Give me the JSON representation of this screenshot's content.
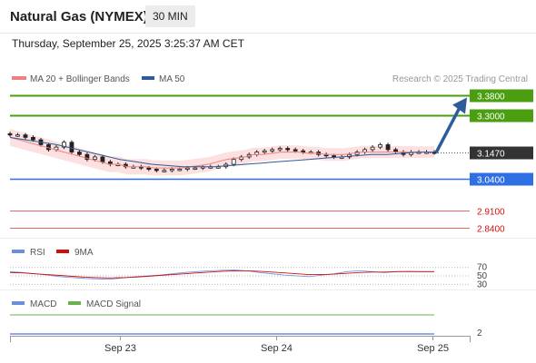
{
  "header": {
    "title": "Natural Gas (NYMEX)",
    "timeframe": "30 MIN",
    "timestamp": "Thursday, September 25, 2025 3:25:37 AM CET"
  },
  "legend": {
    "ma20_bb": "MA 20 + Bollinger Bands",
    "ma50": "MA 50",
    "copyright": "Research © 2025 Trading Central",
    "rsi": "RSI",
    "rsi_ma": "9MA",
    "macd": "MACD",
    "macd_signal": "MACD Signal"
  },
  "colors": {
    "ma20": "#f08080",
    "ma50": "#2c5d9a",
    "bands": "#fde0e0",
    "resistance": "#4a9e0f",
    "support": "#2f6fe4",
    "target_red": "#d01010",
    "current": "#333333",
    "arrow": "#2c5d9a",
    "rsi": "#6a8fe0",
    "rsi_ma": "#d01010",
    "macd": "#6a8fe0",
    "macd_signal": "#6ab04c"
  },
  "chart_data": {
    "type": "line",
    "price_levels": [
      {
        "label": "3.3800",
        "value": 3.38,
        "kind": "resistance"
      },
      {
        "label": "3.3000",
        "value": 3.3,
        "kind": "resistance"
      },
      {
        "label": "3.1470",
        "value": 3.147,
        "kind": "current"
      },
      {
        "label": "3.0400",
        "value": 3.04,
        "kind": "support"
      },
      {
        "label": "2.9100",
        "value": 2.91,
        "kind": "target"
      },
      {
        "label": "2.8400",
        "value": 2.84,
        "kind": "target"
      }
    ],
    "price_axis": {
      "min": 2.8,
      "max": 3.43
    },
    "x_ticks": [
      {
        "label": "Sep 23",
        "t": 0.24
      },
      {
        "label": "Sep 24",
        "t": 0.58
      },
      {
        "label": "Sep 25",
        "t": 0.92
      }
    ],
    "close": [
      3.22,
      3.22,
      3.21,
      3.2,
      3.18,
      3.16,
      3.17,
      3.19,
      3.15,
      3.14,
      3.12,
      3.13,
      3.11,
      3.1,
      3.1,
      3.09,
      3.09,
      3.085,
      3.08,
      3.075,
      3.075,
      3.08,
      3.08,
      3.085,
      3.085,
      3.09,
      3.09,
      3.09,
      3.1,
      3.12,
      3.13,
      3.14,
      3.15,
      3.155,
      3.16,
      3.165,
      3.16,
      3.155,
      3.15,
      3.15,
      3.14,
      3.135,
      3.13,
      3.13,
      3.14,
      3.15,
      3.16,
      3.17,
      3.18,
      3.16,
      3.15,
      3.14,
      3.15,
      3.15,
      3.15,
      3.147
    ],
    "ma20": [
      3.21,
      3.2,
      3.19,
      3.18,
      3.17,
      3.16,
      3.15,
      3.14,
      3.13,
      3.12,
      3.11,
      3.1,
      3.1,
      3.09,
      3.09,
      3.09,
      3.085,
      3.085,
      3.085,
      3.085,
      3.09,
      3.095,
      3.1,
      3.11,
      3.12,
      3.125,
      3.13,
      3.14,
      3.14,
      3.145,
      3.15,
      3.15,
      3.15,
      3.145,
      3.145,
      3.14,
      3.14,
      3.14,
      3.145,
      3.15,
      3.15,
      3.15,
      3.15,
      3.15,
      3.15,
      3.15,
      3.15,
      3.15
    ],
    "ma50": [
      3.21,
      3.2,
      3.19,
      3.18,
      3.165,
      3.15,
      3.135,
      3.12,
      3.11,
      3.1,
      3.095,
      3.09,
      3.09,
      3.09,
      3.095,
      3.1,
      3.105,
      3.11,
      3.115,
      3.12,
      3.125,
      3.13,
      3.135,
      3.14,
      3.14,
      3.145,
      3.15,
      3.15
    ],
    "rsi": [
      60,
      58,
      55,
      52,
      48,
      46,
      44,
      43,
      42,
      45,
      48,
      50,
      52,
      55,
      58,
      60,
      62,
      63,
      64,
      62,
      58,
      55,
      52,
      50,
      48,
      52,
      55,
      60,
      62,
      60,
      58,
      60,
      61,
      60,
      60
    ],
    "rsi_ma": [
      58,
      57,
      55,
      53,
      51,
      49,
      47,
      46,
      45,
      46,
      47,
      49,
      51,
      53,
      55,
      57,
      59,
      61,
      62,
      62,
      61,
      59,
      57,
      55,
      53,
      53,
      54,
      56,
      58,
      59,
      59,
      60,
      60,
      60,
      60
    ],
    "rsi_levels": [
      {
        "label": "70",
        "value": 70
      },
      {
        "label": "50",
        "value": 50
      },
      {
        "label": "30",
        "value": 30
      }
    ],
    "macd_level_label": "2"
  }
}
